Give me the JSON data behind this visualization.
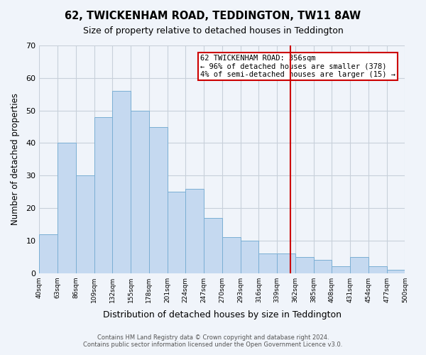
{
  "title": "62, TWICKENHAM ROAD, TEDDINGTON, TW11 8AW",
  "subtitle": "Size of property relative to detached houses in Teddington",
  "xlabel": "Distribution of detached houses by size in Teddington",
  "ylabel": "Number of detached properties",
  "bin_labels": [
    "40sqm",
    "63sqm",
    "86sqm",
    "109sqm",
    "132sqm",
    "155sqm",
    "178sqm",
    "201sqm",
    "224sqm",
    "247sqm",
    "270sqm",
    "293sqm",
    "316sqm",
    "339sqm",
    "362sqm",
    "385sqm",
    "408sqm",
    "431sqm",
    "454sqm",
    "477sqm",
    "500sqm"
  ],
  "bar_values": [
    12,
    40,
    30,
    48,
    56,
    50,
    45,
    25,
    26,
    17,
    11,
    10,
    6,
    6,
    5,
    4,
    2,
    5,
    2,
    1
  ],
  "bar_color": "#c5d9f0",
  "bar_edge_color": "#7bafd4",
  "grid_color": "#c8d0da",
  "background_color": "#f0f4fa",
  "vline_x": 356,
  "vline_color": "#cc0000",
  "ylim": [
    0,
    70
  ],
  "yticks": [
    0,
    10,
    20,
    30,
    40,
    50,
    60,
    70
  ],
  "annotation_title": "62 TWICKENHAM ROAD: 356sqm",
  "annotation_line1": "← 96% of detached houses are smaller (378)",
  "annotation_line2": "4% of semi-detached houses are larger (15) →",
  "footer_line1": "Contains HM Land Registry data © Crown copyright and database right 2024.",
  "footer_line2": "Contains public sector information licensed under the Open Government Licence v3.0.",
  "bin_edges": [
    40,
    63,
    86,
    109,
    132,
    155,
    178,
    201,
    224,
    247,
    270,
    293,
    316,
    339,
    362,
    385,
    408,
    431,
    454,
    477,
    500
  ]
}
